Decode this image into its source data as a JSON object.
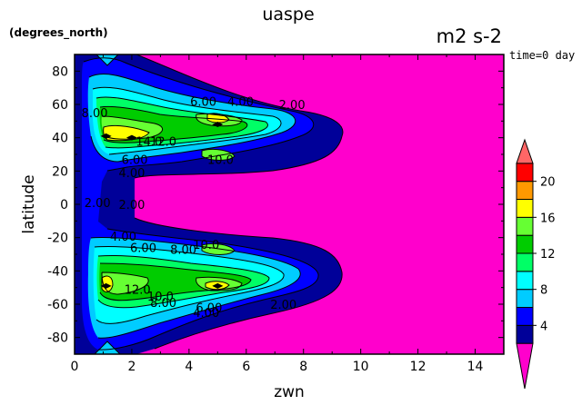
{
  "chart_data": {
    "type": "contour",
    "title": "uaspe",
    "units": "m2 s-2",
    "yunits": "(degrees_north)",
    "time_label": "time=0 day",
    "xlabel": "zwn",
    "ylabel": "latitude",
    "xlim": [
      0,
      15
    ],
    "ylim": [
      -90,
      90
    ],
    "xticks": [
      0,
      2,
      4,
      6,
      8,
      10,
      12,
      14
    ],
    "yticks": [
      -80,
      -60,
      -40,
      -20,
      0,
      20,
      40,
      60,
      80
    ],
    "grid": false,
    "contour_levels": [
      2,
      4,
      6,
      8,
      10,
      12,
      14,
      16,
      18,
      20
    ],
    "colorbar": {
      "tick_labels": [
        "4",
        "8",
        "12",
        "16",
        "20"
      ],
      "tick_values": [
        4,
        8,
        12,
        16,
        20
      ],
      "colors": [
        "#ff00cc",
        "#000099",
        "#0000ff",
        "#00ccff",
        "#00ffff",
        "#00ff66",
        "#00cc00",
        "#66ff33",
        "#ffff00",
        "#ff9900",
        "#ff0000",
        "#ff6666"
      ],
      "boundaries": [
        0,
        2,
        4,
        6,
        8,
        10,
        12,
        14,
        16,
        18,
        20,
        22,
        24
      ]
    },
    "contour_labels": [
      {
        "text": "6.00",
        "x": 4.5,
        "y": 62
      },
      {
        "text": "4.00",
        "x": 5.8,
        "y": 62
      },
      {
        "text": "2.00",
        "x": 7.6,
        "y": 60
      },
      {
        "text": "8.00",
        "x": 0.7,
        "y": 55
      },
      {
        "text": "14.0",
        "x": 2.6,
        "y": 38
      },
      {
        "text": "12.0",
        "x": 3.1,
        "y": 38
      },
      {
        "text": "10.0",
        "x": 5.1,
        "y": 27
      },
      {
        "text": "6.00",
        "x": 2.1,
        "y": 27
      },
      {
        "text": "4.00",
        "x": 2.0,
        "y": 19
      },
      {
        "text": "2.00",
        "x": 0.8,
        "y": 1
      },
      {
        "text": "2.00",
        "x": 2.0,
        "y": 0
      },
      {
        "text": "4.00",
        "x": 1.7,
        "y": -19
      },
      {
        "text": "6.00",
        "x": 2.4,
        "y": -26
      },
      {
        "text": "8.00",
        "x": 3.8,
        "y": -27
      },
      {
        "text": "10.0",
        "x": 4.6,
        "y": -24
      },
      {
        "text": "12.0",
        "x": 2.2,
        "y": -51
      },
      {
        "text": "10.0",
        "x": 3.0,
        "y": -55
      },
      {
        "text": "8.00",
        "x": 3.1,
        "y": -59
      },
      {
        "text": "6.00",
        "x": 4.7,
        "y": -62
      },
      {
        "text": "4.00",
        "x": 4.6,
        "y": -65
      },
      {
        "text": "2.00",
        "x": 7.3,
        "y": -60
      }
    ],
    "maxima": [
      {
        "x": 1.1,
        "y": 41,
        "value": 16
      },
      {
        "x": 2.0,
        "y": 40,
        "value": 16
      },
      {
        "x": 5.0,
        "y": 48,
        "value": 16
      },
      {
        "x": 1.1,
        "y": -49,
        "value": 16
      },
      {
        "x": 5.0,
        "y": -49,
        "value": 16
      }
    ]
  }
}
